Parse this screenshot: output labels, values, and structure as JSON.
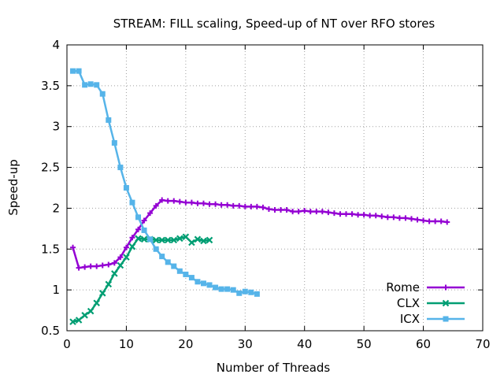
{
  "chart_data": {
    "type": "line",
    "title": "STREAM: FILL scaling, Speed-up of NT over RFO stores",
    "xlabel": "Number of Threads",
    "ylabel": "Speed-up",
    "xlim": [
      0,
      70
    ],
    "ylim": [
      0.5,
      4
    ],
    "xticks": [
      0,
      10,
      20,
      30,
      40,
      50,
      60,
      70
    ],
    "yticks": [
      0.5,
      1,
      1.5,
      2,
      2.5,
      3,
      3.5,
      4
    ],
    "xtick_labels": [
      "0",
      "10",
      "20",
      "30",
      "40",
      "50",
      "60",
      "70"
    ],
    "ytick_labels": [
      "0.5",
      "1",
      "1.5",
      "2",
      "2.5",
      "3",
      "3.5",
      "4"
    ],
    "grid": true,
    "legend_position": "bottom-right",
    "series": [
      {
        "name": "Rome",
        "color": "#9400d3",
        "marker": "plus",
        "x": [
          1,
          2,
          3,
          4,
          5,
          6,
          7,
          8,
          9,
          10,
          11,
          12,
          13,
          14,
          15,
          16,
          17,
          18,
          19,
          20,
          21,
          22,
          23,
          24,
          25,
          26,
          27,
          28,
          29,
          30,
          31,
          32,
          33,
          34,
          35,
          36,
          37,
          38,
          39,
          40,
          41,
          42,
          43,
          44,
          45,
          46,
          47,
          48,
          49,
          50,
          51,
          52,
          53,
          54,
          55,
          56,
          57,
          58,
          59,
          60,
          61,
          62,
          63,
          64
        ],
        "values": [
          1.52,
          1.27,
          1.28,
          1.29,
          1.29,
          1.3,
          1.31,
          1.33,
          1.4,
          1.52,
          1.64,
          1.74,
          1.85,
          1.94,
          2.03,
          2.1,
          2.09,
          2.09,
          2.08,
          2.07,
          2.07,
          2.06,
          2.06,
          2.05,
          2.05,
          2.04,
          2.04,
          2.03,
          2.03,
          2.02,
          2.02,
          2.02,
          2.01,
          1.99,
          1.98,
          1.98,
          1.98,
          1.96,
          1.96,
          1.97,
          1.96,
          1.96,
          1.96,
          1.95,
          1.94,
          1.93,
          1.93,
          1.93,
          1.92,
          1.92,
          1.91,
          1.91,
          1.9,
          1.89,
          1.89,
          1.88,
          1.88,
          1.87,
          1.86,
          1.85,
          1.84,
          1.84,
          1.84,
          1.83
        ]
      },
      {
        "name": "CLX",
        "color": "#009e73",
        "marker": "cross",
        "x": [
          1,
          2,
          3,
          4,
          5,
          6,
          7,
          8,
          9,
          10,
          11,
          12,
          13,
          14,
          15,
          16,
          17,
          18,
          19,
          20,
          21,
          22,
          23,
          24
        ],
        "values": [
          0.61,
          0.63,
          0.69,
          0.74,
          0.84,
          0.96,
          1.07,
          1.2,
          1.3,
          1.4,
          1.53,
          1.63,
          1.62,
          1.62,
          1.61,
          1.61,
          1.61,
          1.61,
          1.63,
          1.65,
          1.58,
          1.62,
          1.6,
          1.61
        ]
      },
      {
        "name": "ICX",
        "color": "#56b4e9",
        "marker": "square",
        "x": [
          1,
          2,
          3,
          4,
          5,
          6,
          7,
          8,
          9,
          10,
          11,
          12,
          13,
          14,
          15,
          16,
          17,
          18,
          19,
          20,
          21,
          22,
          23,
          24,
          25,
          26,
          27,
          28,
          29,
          30,
          31,
          32
        ],
        "values": [
          3.68,
          3.68,
          3.51,
          3.52,
          3.51,
          3.4,
          3.08,
          2.8,
          2.5,
          2.25,
          2.07,
          1.89,
          1.73,
          1.62,
          1.5,
          1.41,
          1.34,
          1.29,
          1.23,
          1.19,
          1.15,
          1.1,
          1.08,
          1.06,
          1.03,
          1.01,
          1.01,
          1.0,
          0.96,
          0.98,
          0.97,
          0.95
        ]
      }
    ]
  }
}
